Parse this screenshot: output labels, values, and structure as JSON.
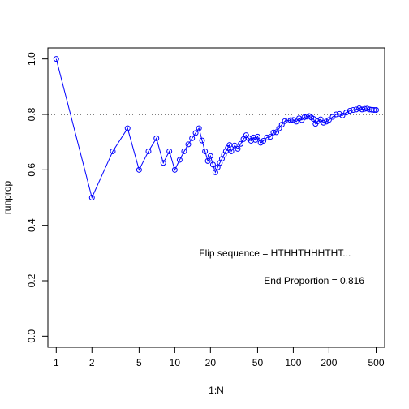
{
  "chart_data": {
    "type": "line",
    "title": "",
    "xlabel": "1:N",
    "ylabel": "runprop",
    "x_scale": "log",
    "xlim": [
      0.85,
      590
    ],
    "ylim": [
      -0.04,
      1.04
    ],
    "x_ticks": [
      1,
      2,
      5,
      10,
      20,
      50,
      100,
      200,
      500
    ],
    "x_tick_labels": [
      "1",
      "2",
      "5",
      "10",
      "20",
      "50",
      "100",
      "200",
      "500"
    ],
    "y_ticks": [
      0.0,
      0.2,
      0.4,
      0.6,
      0.8,
      1.0
    ],
    "y_tick_labels": [
      "0.0",
      "0.2",
      "0.4",
      "0.6",
      "0.8",
      "1.0"
    ],
    "reference_line": {
      "y": 0.8,
      "style": "dotted",
      "color": "#000000"
    },
    "series_color": "#0000ff",
    "marker": "open-circle",
    "grid": false,
    "annotations": [
      {
        "text": "Flip sequence = HTHHTHHHTHT...",
        "x": 70,
        "y": 0.3
      },
      {
        "text": "End Proportion =  0.816",
        "x": 150,
        "y": 0.2
      }
    ],
    "series": [
      {
        "x": [
          1,
          2,
          3,
          4,
          5,
          6,
          7,
          8,
          9,
          10,
          11,
          12,
          13,
          14,
          15,
          16,
          17,
          18,
          19,
          20,
          21,
          22,
          23,
          24,
          25,
          26,
          27,
          28,
          29,
          30,
          32,
          34,
          36,
          38,
          40,
          42,
          44,
          46,
          48,
          50,
          53,
          56,
          60,
          64,
          68,
          72,
          76,
          80,
          85,
          90,
          95,
          100,
          106,
          112,
          118,
          124,
          130,
          136,
          142,
          148,
          154,
          160,
          170,
          180,
          190,
          200,
          215,
          230,
          245,
          260,
          280,
          300,
          320,
          340,
          360,
          380,
          400,
          420,
          440,
          460,
          480,
          500
        ],
        "y": [
          1.0,
          0.5,
          0.667,
          0.75,
          0.6,
          0.667,
          0.714,
          0.625,
          0.667,
          0.6,
          0.636,
          0.667,
          0.692,
          0.714,
          0.733,
          0.75,
          0.706,
          0.667,
          0.632,
          0.65,
          0.619,
          0.591,
          0.609,
          0.625,
          0.64,
          0.654,
          0.667,
          0.679,
          0.69,
          0.667,
          0.688,
          0.676,
          0.694,
          0.711,
          0.725,
          0.714,
          0.705,
          0.717,
          0.708,
          0.72,
          0.698,
          0.705,
          0.717,
          0.719,
          0.735,
          0.736,
          0.75,
          0.763,
          0.776,
          0.778,
          0.779,
          0.78,
          0.774,
          0.786,
          0.78,
          0.79,
          0.792,
          0.794,
          0.789,
          0.784,
          0.766,
          0.775,
          0.782,
          0.77,
          0.774,
          0.78,
          0.791,
          0.8,
          0.802,
          0.796,
          0.807,
          0.813,
          0.816,
          0.818,
          0.822,
          0.818,
          0.82,
          0.821,
          0.818,
          0.817,
          0.816,
          0.816
        ]
      }
    ]
  }
}
